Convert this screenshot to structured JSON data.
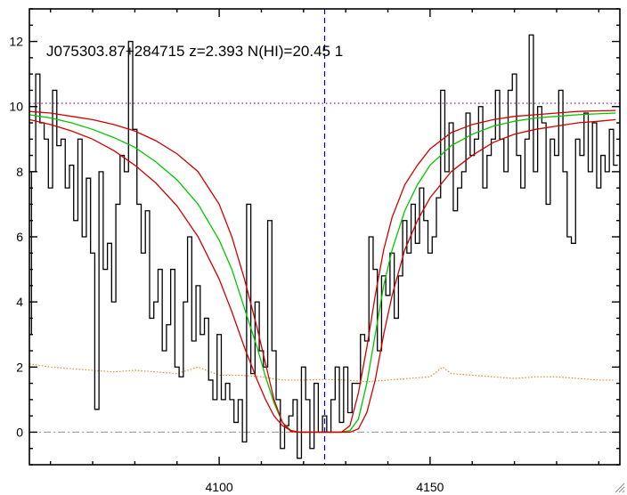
{
  "chart_data": {
    "type": "line",
    "title": "J075303.87+284715 z=2.393 N(HI)=20.45 1",
    "xlabel": "",
    "ylabel": "",
    "xlim": [
      4055,
      4195
    ],
    "ylim": [
      -1,
      13
    ],
    "xticks": [
      4100,
      4150
    ],
    "yticks": [
      0,
      2,
      4,
      6,
      8,
      10,
      12
    ],
    "grid": false,
    "continuum_level": 10.1,
    "zero_level": 0,
    "line_center": 4125,
    "spectrum": {
      "x": [
        4055,
        4056,
        4057,
        4058,
        4059,
        4060,
        4061,
        4062,
        4063,
        4064,
        4065,
        4066,
        4067,
        4068,
        4069,
        4070,
        4071,
        4072,
        4073,
        4074,
        4075,
        4076,
        4077,
        4078,
        4079,
        4080,
        4081,
        4082,
        4083,
        4084,
        4085,
        4086,
        4087,
        4088,
        4089,
        4090,
        4091,
        4092,
        4093,
        4094,
        4095,
        4096,
        4097,
        4098,
        4099,
        4100,
        4101,
        4102,
        4103,
        4104,
        4105,
        4106,
        4107,
        4108,
        4109,
        4110,
        4111,
        4112,
        4113,
        4114,
        4115,
        4116,
        4117,
        4118,
        4119,
        4120,
        4121,
        4122,
        4123,
        4124,
        4125,
        4126,
        4127,
        4128,
        4129,
        4130,
        4131,
        4132,
        4133,
        4134,
        4135,
        4136,
        4137,
        4138,
        4139,
        4140,
        4141,
        4142,
        4143,
        4144,
        4145,
        4146,
        4147,
        4148,
        4149,
        4150,
        4151,
        4152,
        4153,
        4154,
        4155,
        4156,
        4157,
        4158,
        4159,
        4160,
        4161,
        4162,
        4163,
        4164,
        4165,
        4166,
        4167,
        4168,
        4169,
        4170,
        4171,
        4172,
        4173,
        4174,
        4175,
        4176,
        4177,
        4178,
        4179,
        4180,
        4181,
        4182,
        4183,
        4184,
        4185,
        4186,
        4187,
        4188,
        4189,
        4190,
        4191,
        4192,
        4193,
        4194
      ],
      "y": [
        3.0,
        8.0,
        11.0,
        9.5,
        9.0,
        7.5,
        10.5,
        8.8,
        9.0,
        7.5,
        8.2,
        6.5,
        9.0,
        6.0,
        7.8,
        5.5,
        0.7,
        8.0,
        5.0,
        5.8,
        4.0,
        7.0,
        8.5,
        8.0,
        12.0,
        9.3,
        7.0,
        5.5,
        6.8,
        3.5,
        4.0,
        5.0,
        2.5,
        3.3,
        5.0,
        2.0,
        1.7,
        4.0,
        6.0,
        2.8,
        4.5,
        3.0,
        3.5,
        1.6,
        1.0,
        3.0,
        1.0,
        1.5,
        1.0,
        0.3,
        1.0,
        -0.3,
        7.0,
        1.8,
        4.0,
        2.5,
        2.0,
        6.5,
        2.5,
        1.0,
        -0.5,
        0.2,
        0.5,
        1.0,
        -0.8,
        2.0,
        1.0,
        -0.5,
        1.5,
        0.0,
        0.5,
        0.0,
        1.0,
        2.0,
        0.3,
        2.0,
        0.6,
        1.5,
        1.5,
        3.0,
        2.8,
        6.0,
        5.0,
        2.5,
        4.8,
        4.2,
        5.5,
        3.5,
        4.8,
        6.5,
        5.5,
        7.0,
        5.8,
        7.5,
        6.5,
        5.5,
        6.0,
        7.2,
        10.5,
        8.0,
        9.5,
        6.8,
        7.5,
        8.0,
        9.8,
        8.5,
        9.0,
        10.0,
        7.5,
        8.5,
        9.0,
        10.5,
        9.0,
        8.0,
        10.5,
        11.0,
        8.5,
        7.5,
        9.0,
        12.2,
        8.0,
        10.0,
        9.5,
        7.0,
        9.0,
        8.5,
        10.5,
        8.0,
        6.0,
        5.8,
        9.0,
        8.5,
        9.8,
        8.0,
        9.5,
        7.5,
        8.5,
        8.0,
        9.3,
        8.2
      ]
    },
    "error": {
      "x": [
        4055,
        4060,
        4065,
        4070,
        4075,
        4080,
        4085,
        4090,
        4095,
        4100,
        4105,
        4110,
        4115,
        4120,
        4125,
        4130,
        4135,
        4140,
        4145,
        4150,
        4153,
        4155,
        4160,
        4165,
        4170,
        4175,
        4180,
        4185,
        4190,
        4194
      ],
      "y": [
        2.1,
        2.0,
        1.95,
        1.9,
        1.85,
        1.9,
        1.85,
        1.8,
        2.0,
        1.75,
        1.75,
        1.7,
        1.6,
        1.6,
        1.62,
        1.6,
        1.55,
        1.6,
        1.65,
        1.7,
        2.0,
        1.8,
        1.75,
        1.7,
        1.65,
        1.7,
        1.7,
        1.65,
        1.6,
        1.6
      ]
    },
    "fits": [
      {
        "role": "best",
        "color": "#00c800",
        "x": [
          4055,
          4060,
          4065,
          4070,
          4075,
          4080,
          4085,
          4090,
          4095,
          4100,
          4103,
          4106,
          4109,
          4111,
          4113,
          4115,
          4117,
          4119,
          4121,
          4123,
          4125,
          4127,
          4129,
          4131,
          4133,
          4135,
          4137,
          4139,
          4141,
          4144,
          4147,
          4150,
          4155,
          4160,
          4165,
          4170,
          4175,
          4180,
          4185,
          4190,
          4194
        ],
        "y": [
          9.75,
          9.65,
          9.5,
          9.3,
          9.05,
          8.75,
          8.3,
          7.75,
          7.0,
          5.9,
          5.0,
          3.8,
          2.6,
          1.7,
          0.9,
          0.3,
          0.05,
          0.0,
          0.0,
          0.0,
          0.0,
          0.0,
          0.0,
          0.05,
          0.4,
          1.5,
          3.0,
          4.5,
          5.6,
          6.8,
          7.6,
          8.2,
          8.8,
          9.15,
          9.4,
          9.55,
          9.65,
          9.7,
          9.75,
          9.78,
          9.8
        ]
      },
      {
        "role": "upper",
        "color": "#d00000",
        "x": [
          4055,
          4060,
          4065,
          4070,
          4075,
          4080,
          4085,
          4090,
          4095,
          4100,
          4103,
          4106,
          4109,
          4111,
          4113,
          4115,
          4117,
          4119,
          4121,
          4123,
          4125,
          4127,
          4129,
          4131,
          4133,
          4135,
          4137,
          4139,
          4141,
          4144,
          4147,
          4150,
          4155,
          4160,
          4165,
          4170,
          4175,
          4180,
          4185,
          4190,
          4194
        ],
        "y": [
          9.85,
          9.8,
          9.7,
          9.6,
          9.45,
          9.25,
          8.95,
          8.55,
          8.0,
          7.0,
          6.0,
          4.7,
          3.2,
          2.1,
          1.0,
          0.3,
          0.02,
          0.0,
          0.0,
          0.0,
          0.0,
          0.0,
          0.0,
          0.2,
          1.2,
          2.6,
          4.2,
          5.6,
          6.6,
          7.6,
          8.2,
          8.7,
          9.2,
          9.45,
          9.6,
          9.7,
          9.75,
          9.8,
          9.85,
          9.87,
          9.88
        ]
      },
      {
        "role": "lower",
        "color": "#d00000",
        "x": [
          4055,
          4060,
          4065,
          4070,
          4075,
          4080,
          4085,
          4090,
          4095,
          4100,
          4103,
          4106,
          4109,
          4111,
          4113,
          4115,
          4117,
          4119,
          4121,
          4123,
          4125,
          4127,
          4129,
          4131,
          4133,
          4135,
          4137,
          4139,
          4141,
          4144,
          4147,
          4150,
          4155,
          4160,
          4165,
          4170,
          4175,
          4180,
          4185,
          4190,
          4194
        ],
        "y": [
          9.6,
          9.45,
          9.25,
          9.0,
          8.65,
          8.2,
          7.65,
          6.95,
          6.0,
          4.7,
          3.7,
          2.6,
          1.6,
          1.0,
          0.5,
          0.2,
          0.05,
          0.0,
          0.0,
          0.0,
          0.0,
          0.0,
          0.0,
          0.0,
          0.1,
          0.6,
          1.6,
          3.0,
          4.2,
          5.6,
          6.5,
          7.2,
          8.0,
          8.5,
          8.9,
          9.15,
          9.3,
          9.4,
          9.5,
          9.55,
          9.6
        ]
      }
    ],
    "colors": {
      "spectrum": "#000000",
      "continuum": "#7a00b0",
      "error": "#e08a30",
      "center_line": "#0000c0",
      "zero_line": "#909090"
    }
  }
}
